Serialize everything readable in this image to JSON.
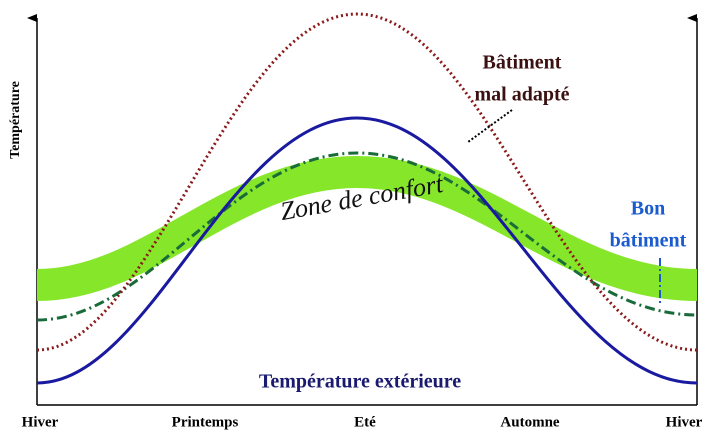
{
  "y_axis_label": "Température",
  "x_labels": [
    "Hiver",
    "Printemps",
    "Eté",
    "Automne",
    "Hiver"
  ],
  "annotations": {
    "bad_building": [
      "Bâtiment",
      "mal adapté"
    ],
    "good_building": [
      "Bon",
      "bâtiment"
    ],
    "comfort_zone": "Zone de confort",
    "outdoor": "Température extérieure"
  }
}
